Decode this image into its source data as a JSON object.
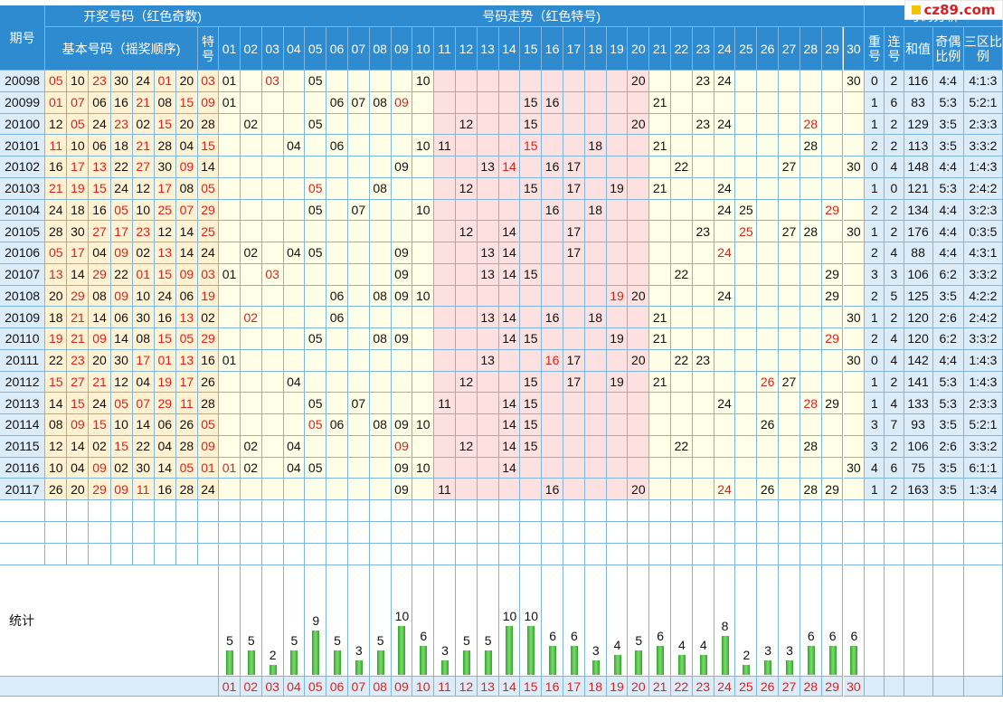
{
  "header": {
    "period_label": "期号",
    "group_draw": "开奖号码（红色奇数)",
    "group_basic": "基本号码（摇奖顺序)",
    "special_label": "特号",
    "group_trend": "号码走势（红色特号)",
    "group_extra": "号码分析",
    "extra_cols": [
      "重号",
      "连号",
      "和值",
      "奇偶比例",
      "三区比例"
    ],
    "stats_label": "统计"
  },
  "logo_text": "cz89.com",
  "numbers": [
    "01",
    "02",
    "03",
    "04",
    "05",
    "06",
    "07",
    "08",
    "09",
    "10",
    "11",
    "12",
    "13",
    "14",
    "15",
    "16",
    "17",
    "18",
    "19",
    "20",
    "21",
    "22",
    "23",
    "24",
    "25",
    "26",
    "27",
    "28",
    "29",
    "30"
  ],
  "chart_data": {
    "type": "table",
    "rows": [
      {
        "period": "20098",
        "balls": [
          "05",
          "10",
          "23",
          "30",
          "24",
          "01",
          "20"
        ],
        "special": "03",
        "repeat": "0",
        "consec": "2",
        "sum": "116",
        "odd_even": "4:4",
        "zones": "4:1:3"
      },
      {
        "period": "20099",
        "balls": [
          "01",
          "07",
          "06",
          "16",
          "21",
          "08",
          "15"
        ],
        "special": "09",
        "repeat": "1",
        "consec": "6",
        "sum": "83",
        "odd_even": "5:3",
        "zones": "5:2:1"
      },
      {
        "period": "20100",
        "balls": [
          "12",
          "05",
          "24",
          "23",
          "02",
          "15",
          "20"
        ],
        "special": "28",
        "repeat": "1",
        "consec": "2",
        "sum": "129",
        "odd_even": "3:5",
        "zones": "2:3:3"
      },
      {
        "period": "20101",
        "balls": [
          "11",
          "10",
          "06",
          "18",
          "21",
          "28",
          "04"
        ],
        "special": "15",
        "repeat": "2",
        "consec": "2",
        "sum": "113",
        "odd_even": "3:5",
        "zones": "3:3:2"
      },
      {
        "period": "20102",
        "balls": [
          "16",
          "17",
          "13",
          "22",
          "27",
          "30",
          "09"
        ],
        "special": "14",
        "repeat": "0",
        "consec": "4",
        "sum": "148",
        "odd_even": "4:4",
        "zones": "1:4:3"
      },
      {
        "period": "20103",
        "balls": [
          "21",
          "19",
          "15",
          "24",
          "12",
          "17",
          "08"
        ],
        "special": "05",
        "repeat": "1",
        "consec": "0",
        "sum": "121",
        "odd_even": "5:3",
        "zones": "2:4:2"
      },
      {
        "period": "20104",
        "balls": [
          "24",
          "18",
          "16",
          "05",
          "10",
          "25",
          "07"
        ],
        "special": "29",
        "repeat": "2",
        "consec": "2",
        "sum": "134",
        "odd_even": "4:4",
        "zones": "3:2:3"
      },
      {
        "period": "20105",
        "balls": [
          "28",
          "30",
          "27",
          "17",
          "23",
          "12",
          "14"
        ],
        "special": "25",
        "repeat": "1",
        "consec": "2",
        "sum": "176",
        "odd_even": "4:4",
        "zones": "0:3:5"
      },
      {
        "period": "20106",
        "balls": [
          "05",
          "17",
          "04",
          "09",
          "02",
          "13",
          "14"
        ],
        "special": "24",
        "repeat": "2",
        "consec": "4",
        "sum": "88",
        "odd_even": "4:4",
        "zones": "4:3:1"
      },
      {
        "period": "20107",
        "balls": [
          "13",
          "14",
          "29",
          "22",
          "01",
          "15",
          "09"
        ],
        "special": "03",
        "repeat": "3",
        "consec": "3",
        "sum": "106",
        "odd_even": "6:2",
        "zones": "3:3:2"
      },
      {
        "period": "20108",
        "balls": [
          "20",
          "29",
          "08",
          "09",
          "10",
          "24",
          "06"
        ],
        "special": "19",
        "repeat": "2",
        "consec": "5",
        "sum": "125",
        "odd_even": "3:5",
        "zones": "4:2:2"
      },
      {
        "period": "20109",
        "balls": [
          "18",
          "21",
          "14",
          "06",
          "30",
          "16",
          "13"
        ],
        "special": "02",
        "repeat": "1",
        "consec": "2",
        "sum": "120",
        "odd_even": "2:6",
        "zones": "2:4:2"
      },
      {
        "period": "20110",
        "balls": [
          "19",
          "21",
          "09",
          "14",
          "08",
          "15",
          "05"
        ],
        "special": "29",
        "repeat": "2",
        "consec": "4",
        "sum": "120",
        "odd_even": "6:2",
        "zones": "3:3:2"
      },
      {
        "period": "20111",
        "balls": [
          "22",
          "23",
          "20",
          "30",
          "17",
          "01",
          "13"
        ],
        "special": "16",
        "repeat": "0",
        "consec": "4",
        "sum": "142",
        "odd_even": "4:4",
        "zones": "1:4:3"
      },
      {
        "period": "20112",
        "balls": [
          "15",
          "27",
          "21",
          "12",
          "04",
          "19",
          "17"
        ],
        "special": "26",
        "repeat": "1",
        "consec": "2",
        "sum": "141",
        "odd_even": "5:3",
        "zones": "1:4:3"
      },
      {
        "period": "20113",
        "balls": [
          "14",
          "15",
          "24",
          "05",
          "07",
          "29",
          "11"
        ],
        "special": "28",
        "repeat": "1",
        "consec": "4",
        "sum": "133",
        "odd_even": "5:3",
        "zones": "2:3:3"
      },
      {
        "period": "20114",
        "balls": [
          "08",
          "09",
          "15",
          "10",
          "14",
          "06",
          "26"
        ],
        "special": "05",
        "repeat": "3",
        "consec": "7",
        "sum": "93",
        "odd_even": "3:5",
        "zones": "5:2:1"
      },
      {
        "period": "20115",
        "balls": [
          "12",
          "14",
          "02",
          "15",
          "22",
          "04",
          "28"
        ],
        "special": "09",
        "repeat": "3",
        "consec": "2",
        "sum": "106",
        "odd_even": "2:6",
        "zones": "3:3:2"
      },
      {
        "period": "20116",
        "balls": [
          "10",
          "04",
          "09",
          "02",
          "30",
          "14",
          "05"
        ],
        "special": "01",
        "repeat": "4",
        "consec": "6",
        "sum": "75",
        "odd_even": "3:5",
        "zones": "6:1:1"
      },
      {
        "period": "20117",
        "balls": [
          "26",
          "20",
          "29",
          "09",
          "11",
          "16",
          "28"
        ],
        "special": "24",
        "repeat": "1",
        "consec": "2",
        "sum": "163",
        "odd_even": "3:5",
        "zones": "1:3:4"
      }
    ],
    "stats": {
      "type": "bar",
      "categories": [
        "01",
        "02",
        "03",
        "04",
        "05",
        "06",
        "07",
        "08",
        "09",
        "10",
        "11",
        "12",
        "13",
        "14",
        "15",
        "16",
        "17",
        "18",
        "19",
        "20",
        "21",
        "22",
        "23",
        "24",
        "25",
        "26",
        "27",
        "28",
        "29",
        "30"
      ],
      "values": [
        5,
        5,
        2,
        5,
        9,
        5,
        3,
        5,
        10,
        6,
        3,
        5,
        5,
        10,
        10,
        6,
        6,
        3,
        4,
        5,
        6,
        4,
        4,
        8,
        2,
        3,
        3,
        6,
        6,
        6
      ]
    }
  },
  "colors": {
    "header_bg": "#2e8bd0",
    "grid_line": "#7fb6e0",
    "cell_bg": "#ffffe8",
    "period_bg": "#dcecf8",
    "draw_bg": "#fff2d2",
    "trend_pink": "#fde0e0",
    "odd_red": "#e0201c",
    "bar_green": "#2fa52f"
  }
}
